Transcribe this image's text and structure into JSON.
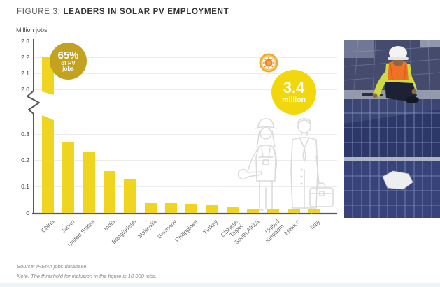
{
  "header": {
    "figure_label": "FIGURE 3:",
    "figure_title": "LEADERS IN SOLAR PV EMPLOYMENT"
  },
  "footer": {
    "source_line": "Source: IRENA jobs database.",
    "note_line": "Note: The threshold for inclusion in the figure is 10 000 jobs."
  },
  "chart_data": {
    "type": "bar",
    "title": "Leaders in solar PV employment",
    "unit_label": "Million jobs",
    "categories": [
      "China",
      "Japan",
      "United States",
      "India",
      "Bangladesh",
      "Malaysia",
      "Germany",
      "Philippines",
      "Turkey",
      "Chinese Taipei",
      "South Africa",
      "United Kingdom",
      "Mexico",
      "Italy"
    ],
    "values": [
      2.2,
      0.27,
      0.23,
      0.16,
      0.13,
      0.04,
      0.036,
      0.034,
      0.032,
      0.024,
      0.015,
      0.016,
      0.013,
      0.012
    ],
    "bar_color": "#EFD51F",
    "grid": true,
    "legend": "none",
    "axis": {
      "broken": true,
      "upper_ticks": [
        2.3,
        2.2,
        2.1,
        2.0
      ],
      "lower_ticks": [
        0.3,
        0.2,
        0.1,
        0
      ],
      "lower_segment_max": 0.37,
      "upper_range": [
        2.0,
        2.3
      ]
    },
    "annotations": {
      "china_share": {
        "value": "65%",
        "line2": "of PV",
        "line3": "jobs",
        "color": "#C2A21F"
      },
      "world_total": {
        "value": "3.4",
        "unit": "million",
        "color": "#F2D70D"
      }
    }
  },
  "icons": {
    "sun_icon": "sun",
    "worker_icon": "female-construction-worker-outline",
    "businessman_icon": "businessman-with-briefcase-outline"
  },
  "colors": {
    "axis": "#58585A",
    "grid": "#ECECEC",
    "tick_text": "#3E3E3E",
    "xlabel_text": "#6E6E6E",
    "note_text": "#8C8C8C",
    "outline_icon": "#DADADA",
    "bottom_strip": "#EEF3F6"
  }
}
